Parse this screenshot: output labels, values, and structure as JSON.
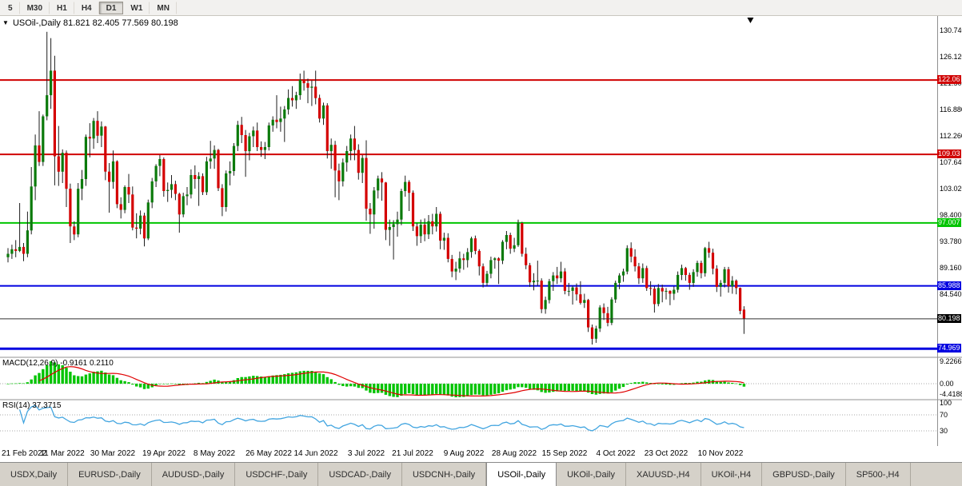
{
  "toolbar": {
    "timeframes": [
      "5",
      "M30",
      "H1",
      "H4",
      "D1",
      "W1",
      "MN"
    ],
    "active_index": 4
  },
  "chart_header": {
    "marker": "▼",
    "symbol_title": "USOil-,Daily",
    "ohlc": "81.821 82.405 77.569 80.198"
  },
  "price_axis": {
    "ticks": [
      "130.740",
      "126.120",
      "121.500",
      "116.880",
      "112.260",
      "107.640",
      "103.020",
      "98.400",
      "93.780",
      "89.160",
      "84.540"
    ]
  },
  "hlines": [
    {
      "value": 122.06,
      "label": "122.06",
      "color": "#D00000",
      "width": 2
    },
    {
      "value": 109.03,
      "label": "109.03",
      "color": "#D00000",
      "width": 2
    },
    {
      "value": 97.007,
      "label": "97.007",
      "color": "#00C400",
      "width": 2
    },
    {
      "value": 85.988,
      "label": "85.988",
      "color": "#0000E0",
      "width": 2
    },
    {
      "value": 74.969,
      "label": "74.969",
      "color": "#0000E0",
      "width": 3
    }
  ],
  "current_price": {
    "value": 80.198,
    "label": "80.198",
    "color": "#000000"
  },
  "macd": {
    "label": "MACD(12,26,9)",
    "values_text": "-0.9161 0.2110",
    "params": {
      "fast": 12,
      "slow": 26,
      "signal": 9
    },
    "axis": {
      "max": "9.2266",
      "zero": "0.00",
      "min": "-4.4188"
    },
    "histogram_color": "#00C400",
    "signal_color": "#E00000"
  },
  "rsi": {
    "label": "RSI(14)",
    "value_text": "37.3715",
    "period": 14,
    "levels": [
      70,
      30
    ],
    "axis": [
      "100",
      "70",
      "30"
    ],
    "line_color": "#42A5E0"
  },
  "x_axis": {
    "labels": [
      "21 Feb 2022",
      "11 Mar 2022",
      "30 Mar 2022",
      "19 Apr 2022",
      "8 May 2022",
      "26 May 2022",
      "14 Jun 2022",
      "3 Jul 2022",
      "21 Jul 2022",
      "9 Aug 2022",
      "28 Aug 2022",
      "15 Sep 2022",
      "4 Oct 2022",
      "23 Oct 2022",
      "10 Nov 2022"
    ],
    "indices": [
      0,
      14,
      27,
      40,
      53,
      67,
      79,
      92,
      104,
      117,
      130,
      143,
      156,
      169,
      183
    ]
  },
  "tabs": {
    "labels": [
      "USDX,Daily",
      "EURUSD-,Daily",
      "AUDUSD-,Daily",
      "USDCHF-,Daily",
      "USDCAD-,Daily",
      "USDCNH-,Daily",
      "USOil-,Daily",
      "UKOil-,Daily",
      "XAUUSD-,H4",
      "UKOil-,H4",
      "GBPUSD-,Daily",
      "SP500-,H4"
    ],
    "active_index": 6
  },
  "chart_data": {
    "type": "candlestick",
    "symbol": "USOil-",
    "timeframe": "Daily",
    "ohlc_current": [
      81.821,
      82.405,
      77.569,
      80.198
    ],
    "ylim": [
      73.6,
      133.0
    ],
    "colors": {
      "bull": "#0B7A0B",
      "bear": "#D40000",
      "wick": "#1E1E1E"
    },
    "candles": [
      [
        91.0,
        92.6,
        90.1,
        91.6
      ],
      [
        91.6,
        93.2,
        90.7,
        92.4
      ],
      [
        92.4,
        94.0,
        91.0,
        92.1
      ],
      [
        92.1,
        100.5,
        91.9,
        92.8
      ],
      [
        92.8,
        93.5,
        90.3,
        91.6
      ],
      [
        91.6,
        99.0,
        91.0,
        95.7
      ],
      [
        95.7,
        106.8,
        95.0,
        103.4
      ],
      [
        103.4,
        112.5,
        101.0,
        110.6
      ],
      [
        110.6,
        116.6,
        107.0,
        107.7
      ],
      [
        107.7,
        116.0,
        107.0,
        115.7
      ],
      [
        115.7,
        130.5,
        115.0,
        119.4
      ],
      [
        119.4,
        129.4,
        117.0,
        123.7
      ],
      [
        123.7,
        126.3,
        103.6,
        108.7
      ],
      [
        108.7,
        114.0,
        103.5,
        106.0
      ],
      [
        106.0,
        109.9,
        104.0,
        109.3
      ],
      [
        109.3,
        109.7,
        99.8,
        103.0
      ],
      [
        103.0,
        103.9,
        93.5,
        96.4
      ],
      [
        96.4,
        97.3,
        94.0,
        95.0
      ],
      [
        95.0,
        104.0,
        94.5,
        103.0
      ],
      [
        103.0,
        106.3,
        101.0,
        104.7
      ],
      [
        104.7,
        112.5,
        103.5,
        112.1
      ],
      [
        112.1,
        114.5,
        108.5,
        111.8
      ],
      [
        111.8,
        115.4,
        110.0,
        114.9
      ],
      [
        114.9,
        116.6,
        111.0,
        112.3
      ],
      [
        112.3,
        114.8,
        110.3,
        113.9
      ],
      [
        113.9,
        114.0,
        104.5,
        106.0
      ],
      [
        106.0,
        107.5,
        98.8,
        104.2
      ],
      [
        104.2,
        109.7,
        103.0,
        107.8
      ],
      [
        107.8,
        108.0,
        99.6,
        100.3
      ],
      [
        100.3,
        101.5,
        97.8,
        99.3
      ],
      [
        99.3,
        103.6,
        98.7,
        103.3
      ],
      [
        103.3,
        105.6,
        100.5,
        102.0
      ],
      [
        102.0,
        103.4,
        95.7,
        96.2
      ],
      [
        96.2,
        98.7,
        94.3,
        96.0
      ],
      [
        96.0,
        99.2,
        95.0,
        98.3
      ],
      [
        98.3,
        98.8,
        92.9,
        94.3
      ],
      [
        94.3,
        101.1,
        94.0,
        100.6
      ],
      [
        100.6,
        104.9,
        99.6,
        104.3
      ],
      [
        104.3,
        107.3,
        103.3,
        107.0
      ],
      [
        107.0,
        108.9,
        105.2,
        108.2
      ],
      [
        108.2,
        108.5,
        101.6,
        102.6
      ],
      [
        102.6,
        104.1,
        100.7,
        102.8
      ],
      [
        102.8,
        105.4,
        101.4,
        103.8
      ],
      [
        103.8,
        104.4,
        101.0,
        102.1
      ],
      [
        102.1,
        102.3,
        95.3,
        98.5
      ],
      [
        98.5,
        102.3,
        98.0,
        101.7
      ],
      [
        101.7,
        103.3,
        100.1,
        102.0
      ],
      [
        102.0,
        106.4,
        101.3,
        105.4
      ],
      [
        105.4,
        107.1,
        103.0,
        104.7
      ],
      [
        104.7,
        105.9,
        100.0,
        105.2
      ],
      [
        105.2,
        105.7,
        101.9,
        102.4
      ],
      [
        102.4,
        108.6,
        101.9,
        107.8
      ],
      [
        107.8,
        111.4,
        106.5,
        108.3
      ],
      [
        108.3,
        110.6,
        106.5,
        109.8
      ],
      [
        109.8,
        110.0,
        102.6,
        103.1
      ],
      [
        103.1,
        103.8,
        98.2,
        99.8
      ],
      [
        99.8,
        106.2,
        99.0,
        105.7
      ],
      [
        105.7,
        107.8,
        103.6,
        106.1
      ],
      [
        106.1,
        111.0,
        105.3,
        110.5
      ],
      [
        110.5,
        114.9,
        109.6,
        114.2
      ],
      [
        114.2,
        115.6,
        111.0,
        112.4
      ],
      [
        112.4,
        113.3,
        105.1,
        109.6
      ],
      [
        109.6,
        112.8,
        108.0,
        112.2
      ],
      [
        112.2,
        113.9,
        110.3,
        113.2
      ],
      [
        113.2,
        114.6,
        109.6,
        110.3
      ],
      [
        110.3,
        111.3,
        108.6,
        109.8
      ],
      [
        109.8,
        111.2,
        108.2,
        110.3
      ],
      [
        110.3,
        114.6,
        109.7,
        114.1
      ],
      [
        114.1,
        115.7,
        113.0,
        115.1
      ],
      [
        115.1,
        119.4,
        113.6,
        114.7
      ],
      [
        114.7,
        117.4,
        113.0,
        115.3
      ],
      [
        115.3,
        117.5,
        111.2,
        116.9
      ],
      [
        116.9,
        120.4,
        116.0,
        118.9
      ],
      [
        118.9,
        121.0,
        117.4,
        118.5
      ],
      [
        118.5,
        120.0,
        117.0,
        119.4
      ],
      [
        119.4,
        123.2,
        118.6,
        122.1
      ],
      [
        122.1,
        123.7,
        120.2,
        121.5
      ],
      [
        121.5,
        122.3,
        118.0,
        120.7
      ],
      [
        120.7,
        122.0,
        117.5,
        120.9
      ],
      [
        120.9,
        123.7,
        117.8,
        118.9
      ],
      [
        118.9,
        119.5,
        114.6,
        115.3
      ],
      [
        115.3,
        118.1,
        114.2,
        117.6
      ],
      [
        117.6,
        118.0,
        108.3,
        109.6
      ],
      [
        109.6,
        111.8,
        106.5,
        110.7
      ],
      [
        110.7,
        111.4,
        101.5,
        106.2
      ],
      [
        106.2,
        107.4,
        101.0,
        104.3
      ],
      [
        104.3,
        108.3,
        103.4,
        107.6
      ],
      [
        107.6,
        110.5,
        106.0,
        109.6
      ],
      [
        109.6,
        112.5,
        108.0,
        111.8
      ],
      [
        111.8,
        114.0,
        108.0,
        109.8
      ],
      [
        109.8,
        110.8,
        104.6,
        105.8
      ],
      [
        105.8,
        108.9,
        104.0,
        108.4
      ],
      [
        108.4,
        111.5,
        97.4,
        99.5
      ],
      [
        99.5,
        100.5,
        95.1,
        98.5
      ],
      [
        98.5,
        103.3,
        96.0,
        102.7
      ],
      [
        102.7,
        105.3,
        101.3,
        104.8
      ],
      [
        104.8,
        105.9,
        100.9,
        104.1
      ],
      [
        104.1,
        104.2,
        94.0,
        95.8
      ],
      [
        95.8,
        97.6,
        93.0,
        96.3
      ],
      [
        96.3,
        97.5,
        90.6,
        96.8
      ],
      [
        96.8,
        99.0,
        94.6,
        97.6
      ],
      [
        97.6,
        103.0,
        96.6,
        102.6
      ],
      [
        102.6,
        105.3,
        101.6,
        104.2
      ],
      [
        104.2,
        104.5,
        99.1,
        102.3
      ],
      [
        102.3,
        102.7,
        95.6,
        96.4
      ],
      [
        96.4,
        97.0,
        93.0,
        94.7
      ],
      [
        94.7,
        97.6,
        93.5,
        96.7
      ],
      [
        96.7,
        97.8,
        93.8,
        95.0
      ],
      [
        95.0,
        98.4,
        94.2,
        97.3
      ],
      [
        97.3,
        98.6,
        95.0,
        96.4
      ],
      [
        96.4,
        99.8,
        95.5,
        98.6
      ],
      [
        98.6,
        99.0,
        92.4,
        93.9
      ],
      [
        93.9,
        95.3,
        92.3,
        94.4
      ],
      [
        94.4,
        95.2,
        90.1,
        90.7
      ],
      [
        90.7,
        91.4,
        87.5,
        88.5
      ],
      [
        88.5,
        90.2,
        87.0,
        89.0
      ],
      [
        89.0,
        92.0,
        88.3,
        90.8
      ],
      [
        90.8,
        91.6,
        88.8,
        90.5
      ],
      [
        90.5,
        92.6,
        89.2,
        91.9
      ],
      [
        91.9,
        94.6,
        90.9,
        94.3
      ],
      [
        94.3,
        94.8,
        91.5,
        92.1
      ],
      [
        92.1,
        92.4,
        87.8,
        89.4
      ],
      [
        89.4,
        89.9,
        85.7,
        86.5
      ],
      [
        86.5,
        88.6,
        85.9,
        88.1
      ],
      [
        88.1,
        91.1,
        87.3,
        90.5
      ],
      [
        90.5,
        91.0,
        89.0,
        90.8
      ],
      [
        90.8,
        91.0,
        86.3,
        90.4
      ],
      [
        90.4,
        94.0,
        89.8,
        93.7
      ],
      [
        93.7,
        95.6,
        92.4,
        94.9
      ],
      [
        94.9,
        95.3,
        91.6,
        92.5
      ],
      [
        92.5,
        94.4,
        91.9,
        93.1
      ],
      [
        93.1,
        97.6,
        92.8,
        97.0
      ],
      [
        97.0,
        97.2,
        91.1,
        91.6
      ],
      [
        91.6,
        92.7,
        88.9,
        89.6
      ],
      [
        89.6,
        90.0,
        85.8,
        86.6
      ],
      [
        86.6,
        88.2,
        85.2,
        86.9
      ],
      [
        86.9,
        90.4,
        86.0,
        86.9
      ],
      [
        86.9,
        87.3,
        81.2,
        81.9
      ],
      [
        81.9,
        84.1,
        81.1,
        83.5
      ],
      [
        83.5,
        87.2,
        82.9,
        86.8
      ],
      [
        86.8,
        88.4,
        85.1,
        87.8
      ],
      [
        87.8,
        89.3,
        86.3,
        87.3
      ],
      [
        87.3,
        90.2,
        86.6,
        88.5
      ],
      [
        88.5,
        89.1,
        84.5,
        85.1
      ],
      [
        85.1,
        86.5,
        84.2,
        85.1
      ],
      [
        85.1,
        86.0,
        82.7,
        85.7
      ],
      [
        85.7,
        86.4,
        83.4,
        84.5
      ],
      [
        84.5,
        86.8,
        82.7,
        83.0
      ],
      [
        83.0,
        84.6,
        82.1,
        83.5
      ],
      [
        83.5,
        83.7,
        77.9,
        78.7
      ],
      [
        78.7,
        79.2,
        75.7,
        76.7
      ],
      [
        76.7,
        79.0,
        76.0,
        78.5
      ],
      [
        78.5,
        82.6,
        77.9,
        82.2
      ],
      [
        82.2,
        82.9,
        80.0,
        81.2
      ],
      [
        81.2,
        82.3,
        78.9,
        79.5
      ],
      [
        79.5,
        84.0,
        79.1,
        83.6
      ],
      [
        83.6,
        86.9,
        83.0,
        86.5
      ],
      [
        86.5,
        88.2,
        85.4,
        87.8
      ],
      [
        87.8,
        89.0,
        86.7,
        88.5
      ],
      [
        88.5,
        93.1,
        88.0,
        92.6
      ],
      [
        92.6,
        93.6,
        90.1,
        91.1
      ],
      [
        91.1,
        92.4,
        88.5,
        89.4
      ],
      [
        89.4,
        90.0,
        86.3,
        87.3
      ],
      [
        87.3,
        89.9,
        86.5,
        89.1
      ],
      [
        89.1,
        89.5,
        85.1,
        85.6
      ],
      [
        85.6,
        86.8,
        84.3,
        85.5
      ],
      [
        85.5,
        85.9,
        81.3,
        82.8
      ],
      [
        82.8,
        86.3,
        82.4,
        85.6
      ],
      [
        85.6,
        86.2,
        83.1,
        85.0
      ],
      [
        85.0,
        85.6,
        83.6,
        85.1
      ],
      [
        85.1,
        85.2,
        82.6,
        84.6
      ],
      [
        84.6,
        85.9,
        83.5,
        85.3
      ],
      [
        85.3,
        88.5,
        84.8,
        87.9
      ],
      [
        87.9,
        89.7,
        87.0,
        89.1
      ],
      [
        89.1,
        89.3,
        86.9,
        87.9
      ],
      [
        87.9,
        88.3,
        85.3,
        86.5
      ],
      [
        86.5,
        88.9,
        85.8,
        88.4
      ],
      [
        88.4,
        90.4,
        87.6,
        90.0
      ],
      [
        90.0,
        90.4,
        87.3,
        88.2
      ],
      [
        88.2,
        92.8,
        87.6,
        92.6
      ],
      [
        92.6,
        93.7,
        90.9,
        91.8
      ],
      [
        91.8,
        92.5,
        88.0,
        89.0
      ],
      [
        89.0,
        89.6,
        84.9,
        85.8
      ],
      [
        85.8,
        87.0,
        84.1,
        86.5
      ],
      [
        86.5,
        89.3,
        85.7,
        88.9
      ],
      [
        88.9,
        89.3,
        84.8,
        85.9
      ],
      [
        85.9,
        87.7,
        84.6,
        86.9
      ],
      [
        86.9,
        87.1,
        84.5,
        85.6
      ],
      [
        85.6,
        85.7,
        81.0,
        81.6
      ],
      [
        81.821,
        82.405,
        77.569,
        80.198
      ]
    ]
  }
}
